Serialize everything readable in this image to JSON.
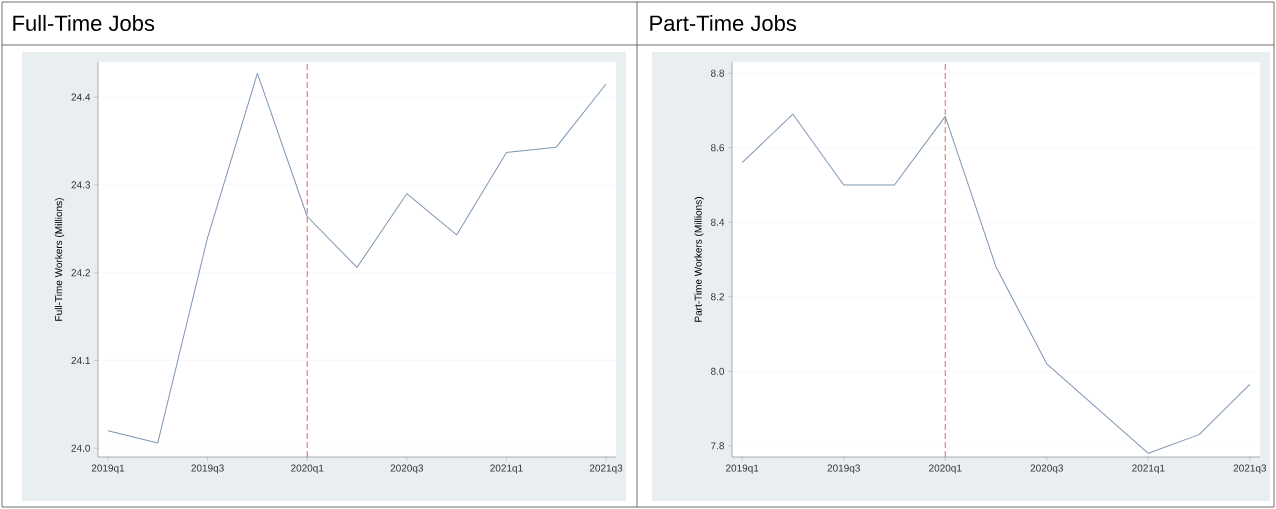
{
  "chart_data": [
    {
      "type": "line",
      "title": "Full-Time Jobs",
      "ylabel": "Full-Time Workers (Millions)",
      "categories": [
        "2019q1",
        null,
        "2019q3",
        null,
        "2020q1",
        null,
        "2020q3",
        null,
        "2021q1",
        null,
        "2021q3"
      ],
      "series": [
        {
          "color": "#7f96b2",
          "values": [
            24.02,
            24.006,
            24.24,
            24.427,
            24.264,
            24.206,
            24.29,
            24.243,
            24.337,
            24.343,
            24.415
          ]
        }
      ],
      "ylim": [
        23.99,
        24.44
      ],
      "yticks": [
        {
          "value": 24,
          "label": "24.0"
        },
        24.1,
        24.2,
        24.3,
        24.4
      ],
      "ref_lines": [
        {
          "axis": "x",
          "value": "2020q1",
          "color": "#e8607a",
          "line_style": "dashed"
        }
      ],
      "grid": "y",
      "marker": "none",
      "line_style": "solid"
    },
    {
      "type": "line",
      "title": "Part-Time Jobs",
      "ylabel": "Part-Time Workers (Millions)",
      "categories": [
        "2019q1",
        null,
        "2019q3",
        null,
        "2020q1",
        null,
        "2020q3",
        null,
        "2021q1",
        null,
        "2021q3"
      ],
      "series": [
        {
          "color": "#7f96b2",
          "values": [
            8.56,
            8.69,
            8.5,
            8.5,
            8.684,
            8.28,
            8.02,
            7.9,
            7.78,
            7.83,
            7.965
          ]
        }
      ],
      "ylim": [
        7.77,
        8.83
      ],
      "yticks": [
        7.8,
        {
          "value": 8,
          "label": "8.0"
        },
        8.2,
        8.4,
        8.6,
        8.8
      ],
      "ref_lines": [
        {
          "axis": "x",
          "value": "2020q1",
          "color": "#e8607a",
          "line_style": "dashed"
        }
      ],
      "grid": "y",
      "marker": "none",
      "line_style": "solid"
    }
  ]
}
